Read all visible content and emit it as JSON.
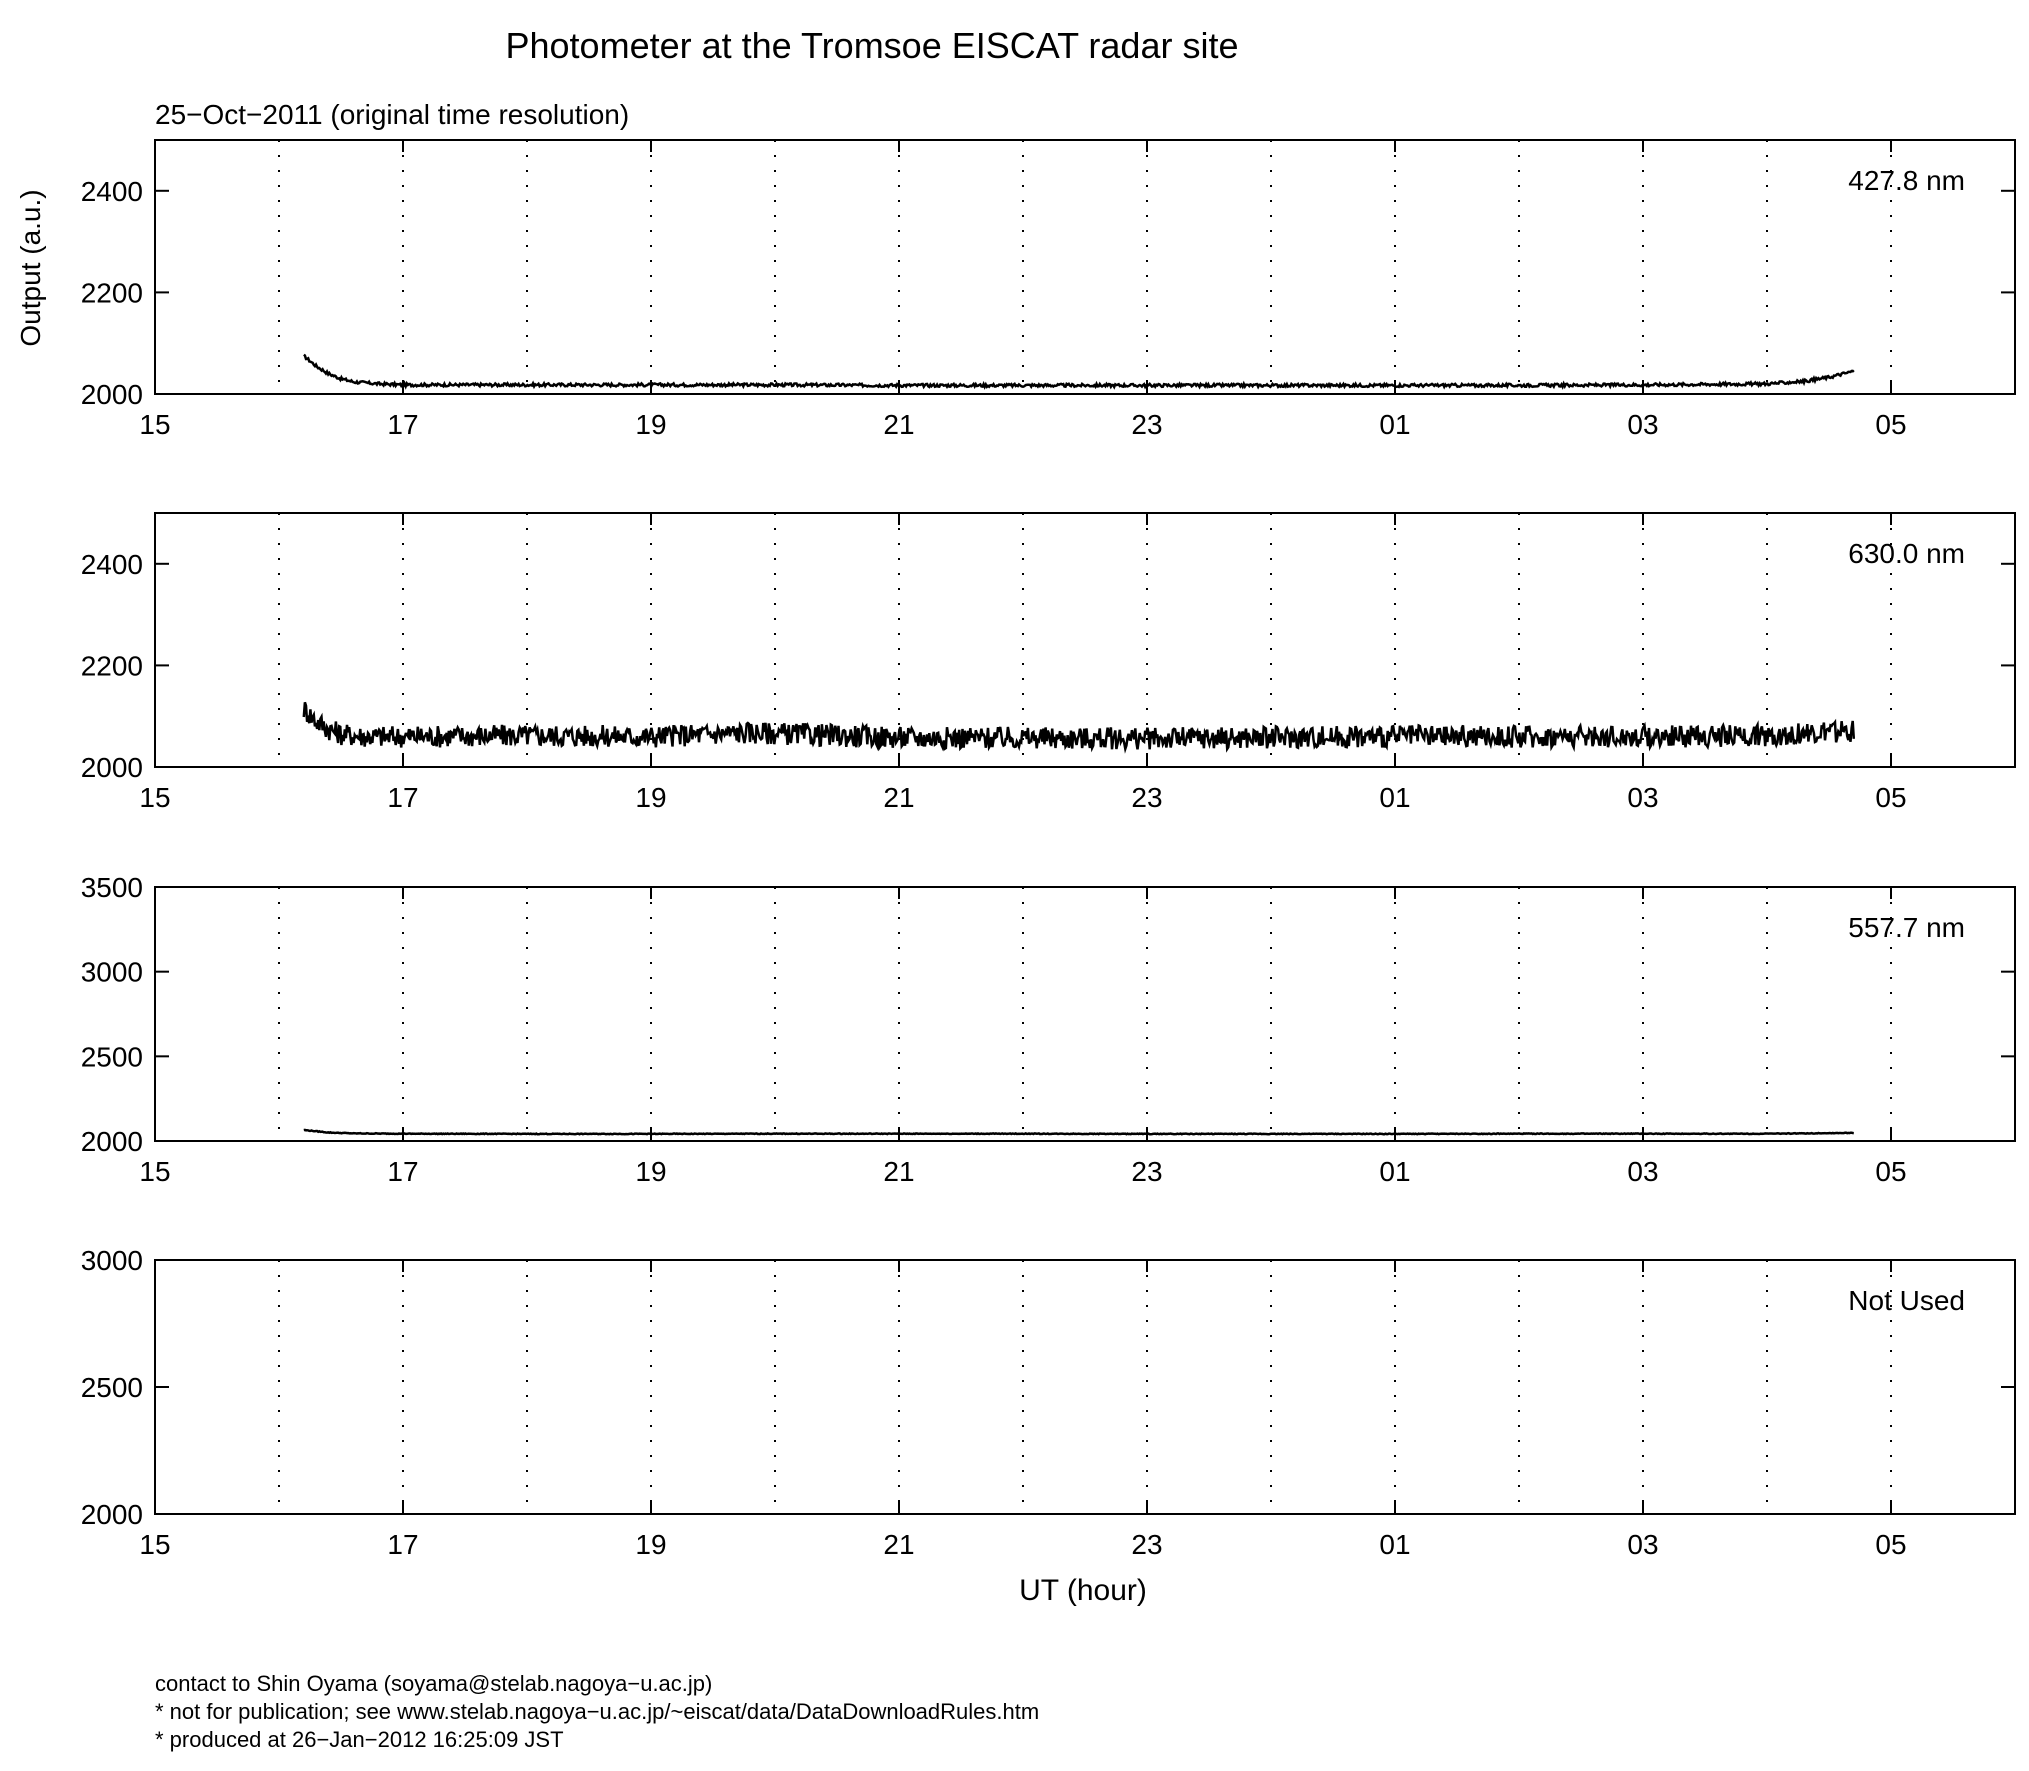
{
  "title": "Photometer at the Tromsoe EISCAT radar site",
  "subtitle": "25−Oct−2011 (original time resolution)",
  "ylabel": "Output (a.u.)",
  "xlabel": "UT (hour)",
  "footer": [
    "contact to Shin Oyama (soyama@stelab.nagoya−u.ac.jp)",
    "* not for publication; see www.stelab.nagoya−u.ac.jp/~eiscat/data/DataDownloadRules.htm",
    "* produced at 26−Jan−2012 16:25:09 JST"
  ],
  "chart_data": [
    {
      "type": "line",
      "label": "427.8 nm",
      "x_unit": "UT hour (continuous from 15)",
      "xlim": [
        15,
        30
      ],
      "x_tick_labels": [
        "15",
        "17",
        "19",
        "21",
        "23",
        "01",
        "03",
        "05"
      ],
      "ylim": [
        2000,
        2500
      ],
      "y_ticks": [
        2000,
        2200,
        2400
      ],
      "grid": "dotted vertical lines each hour",
      "noise": 3,
      "series": [
        {
          "x": [
            16.2,
            16.3,
            16.4,
            16.5,
            16.6,
            16.8,
            17.0,
            18.0,
            19.0,
            20.0,
            21.0,
            22.0,
            23.0,
            24.0,
            25.0,
            26.0,
            27.0,
            28.0,
            28.3,
            28.5,
            28.7
          ],
          "y": [
            2075,
            2055,
            2040,
            2030,
            2024,
            2020,
            2018,
            2018,
            2018,
            2018,
            2017,
            2017,
            2017,
            2017,
            2017,
            2017,
            2018,
            2020,
            2025,
            2033,
            2045
          ]
        }
      ]
    },
    {
      "type": "line",
      "label": "630.0 nm",
      "x_unit": "UT hour (continuous from 15)",
      "xlim": [
        15,
        30
      ],
      "x_tick_labels": [
        "15",
        "17",
        "19",
        "21",
        "23",
        "01",
        "03",
        "05"
      ],
      "ylim": [
        2000,
        2500
      ],
      "y_ticks": [
        2000,
        2200,
        2400
      ],
      "grid": "dotted vertical lines each hour",
      "noise": 22,
      "series": [
        {
          "x": [
            16.2,
            16.3,
            16.4,
            16.5,
            16.7,
            17.0,
            18.0,
            19.0,
            19.8,
            20.5,
            21.0,
            22.0,
            23.0,
            24.0,
            25.0,
            26.0,
            27.0,
            28.0,
            28.7
          ],
          "y": [
            2115,
            2090,
            2075,
            2065,
            2060,
            2060,
            2062,
            2060,
            2068,
            2062,
            2058,
            2057,
            2056,
            2058,
            2060,
            2060,
            2060,
            2062,
            2070
          ]
        }
      ]
    },
    {
      "type": "line",
      "label": "557.7 nm",
      "x_unit": "UT hour (continuous from 15)",
      "xlim": [
        15,
        30
      ],
      "x_tick_labels": [
        "15",
        "17",
        "19",
        "21",
        "23",
        "01",
        "03",
        "05"
      ],
      "ylim": [
        2000,
        3500
      ],
      "y_ticks": [
        2000,
        2500,
        3000,
        3500
      ],
      "grid": "dotted vertical lines each hour",
      "noise": 2,
      "series": [
        {
          "x": [
            16.2,
            16.4,
            16.6,
            17.0,
            18.0,
            19.0,
            20.0,
            21.0,
            22.0,
            23.0,
            24.0,
            25.0,
            26.0,
            27.0,
            28.0,
            28.7
          ],
          "y": [
            2065,
            2050,
            2045,
            2043,
            2042,
            2042,
            2043,
            2043,
            2043,
            2042,
            2042,
            2042,
            2043,
            2043,
            2043,
            2048
          ]
        }
      ]
    },
    {
      "type": "line",
      "label": "Not Used",
      "x_unit": "UT hour (continuous from 15)",
      "xlim": [
        15,
        30
      ],
      "x_tick_labels": [
        "15",
        "17",
        "19",
        "21",
        "23",
        "01",
        "03",
        "05"
      ],
      "ylim": [
        2000,
        3000
      ],
      "y_ticks": [
        2000,
        2500,
        3000
      ],
      "grid": "dotted vertical lines each hour",
      "noise": 0,
      "series": []
    }
  ]
}
